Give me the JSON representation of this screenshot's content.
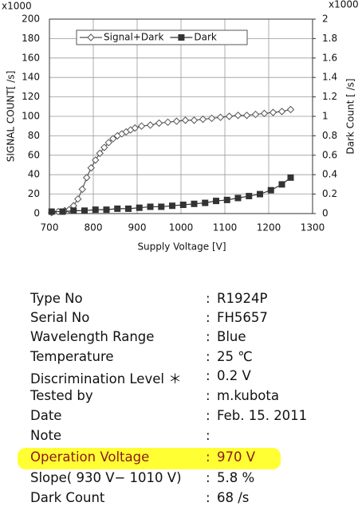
{
  "chart_data": {
    "type": "line",
    "y_multiplier": "x1000",
    "y2_multiplier": "x1000",
    "ylabel": "SIGNAL COUNT[ /s]",
    "y2label": "Dark Count [ /s]",
    "xlabel": "Supply Voltage [V]",
    "xlim": [
      700,
      1300
    ],
    "xticks": [
      700,
      800,
      900,
      1000,
      1100,
      1200,
      1300
    ],
    "ylim": [
      0,
      200
    ],
    "yticks": [
      0,
      20,
      40,
      60,
      80,
      100,
      120,
      140,
      160,
      180,
      200
    ],
    "y2lim": [
      0,
      2
    ],
    "y2ticks": [
      0,
      0.2,
      0.4,
      0.6,
      0.8,
      1,
      1.2,
      1.4,
      1.6,
      1.8,
      2
    ],
    "grid": true,
    "legend": "top",
    "series": [
      {
        "name": "Signal+Dark",
        "color": "#555555",
        "marker": "diamond",
        "x": [
          705,
          720,
          735,
          745,
          755,
          765,
          775,
          785,
          795,
          805,
          815,
          825,
          835,
          845,
          855,
          865,
          875,
          885,
          895,
          910,
          930,
          950,
          970,
          990,
          1010,
          1030,
          1050,
          1070,
          1090,
          1110,
          1130,
          1150,
          1170,
          1190,
          1210,
          1230,
          1250
        ],
        "values": [
          1,
          2,
          3,
          4,
          8,
          15,
          25,
          37,
          47,
          55,
          62,
          68,
          73,
          77,
          80,
          82,
          84,
          86,
          88,
          90,
          91,
          93,
          94,
          95,
          96,
          96,
          97,
          98,
          99,
          100,
          101,
          101,
          102,
          103,
          104,
          105,
          107
        ]
      },
      {
        "name": "Dark",
        "color": "#333333",
        "marker": "square",
        "axis": "y2",
        "x": [
          705,
          730,
          755,
          780,
          805,
          830,
          855,
          880,
          905,
          930,
          955,
          980,
          1005,
          1030,
          1055,
          1080,
          1105,
          1130,
          1155,
          1180,
          1205,
          1230,
          1250
        ],
        "values": [
          0.02,
          0.02,
          0.03,
          0.03,
          0.04,
          0.04,
          0.05,
          0.05,
          0.06,
          0.07,
          0.07,
          0.08,
          0.09,
          0.1,
          0.11,
          0.13,
          0.14,
          0.16,
          0.18,
          0.2,
          0.24,
          0.3,
          0.37
        ]
      }
    ]
  },
  "table": {
    "rows": [
      {
        "label": "Type No",
        "value": "R1924P"
      },
      {
        "label": "Serial No",
        "value": "FH5657"
      },
      {
        "label": "Wavelength Range",
        "value": "Blue"
      },
      {
        "label": "Temperature",
        "value": "25 ℃"
      },
      {
        "label": "Discrimination Level ＊",
        "value": "0.2 V"
      },
      {
        "label": "Tested by",
        "value": "m.kubota"
      },
      {
        "label": "Date",
        "value": "Feb. 15. 2011"
      },
      {
        "label": "Note",
        "value": ""
      },
      {
        "label": "Operation Voltage",
        "value": "970 V"
      },
      {
        "label": "Slope( 930 V− 1010 V)",
        "value": "5.8 %"
      },
      {
        "label": "Dark Count",
        "value": "68 /s"
      }
    ]
  }
}
